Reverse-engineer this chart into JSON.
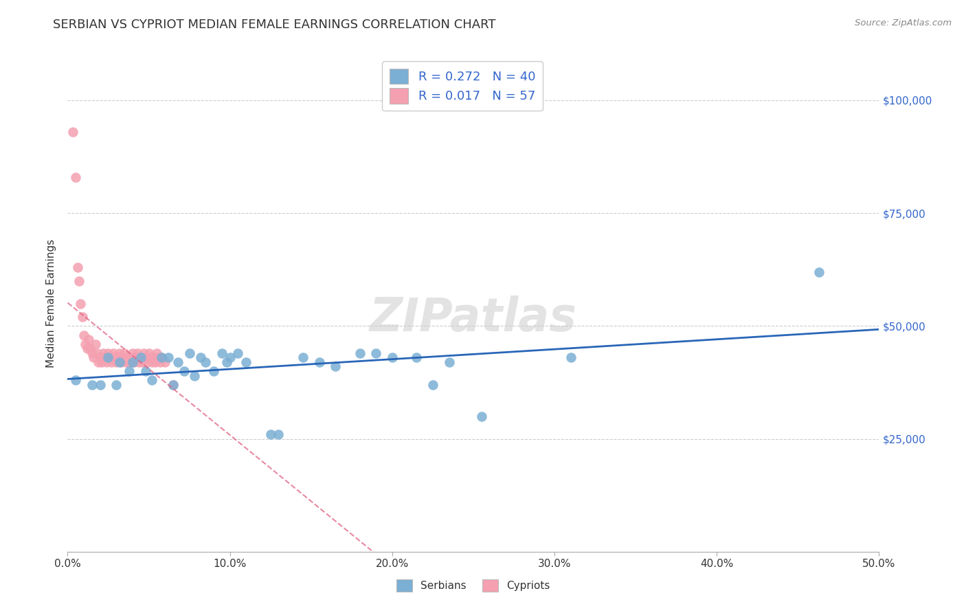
{
  "title": "SERBIAN VS CYPRIOT MEDIAN FEMALE EARNINGS CORRELATION CHART",
  "source": "Source: ZipAtlas.com",
  "ylabel": "Median Female Earnings",
  "xlim": [
    0.0,
    0.5
  ],
  "ylim": [
    0,
    110000
  ],
  "xtick_vals": [
    0.0,
    0.1,
    0.2,
    0.3,
    0.4,
    0.5
  ],
  "xtick_labels": [
    "0.0%",
    "10.0%",
    "20.0%",
    "30.0%",
    "40.0%",
    "50.0%"
  ],
  "ytick_vals": [
    0,
    25000,
    50000,
    75000,
    100000
  ],
  "ytick_right_labels": [
    "",
    "$25,000",
    "$50,000",
    "$75,000",
    "$100,000"
  ],
  "legend_serbian_R": "0.272",
  "legend_serbian_N": "40",
  "legend_cypriot_R": "0.017",
  "legend_cypriot_N": "57",
  "legend_labels": [
    "Serbians",
    "Cypriots"
  ],
  "serbian_color": "#7BAFD4",
  "cypriot_color": "#F4A0B0",
  "trend_serbian_color": "#2966B8",
  "trend_cypriot_color": "#E06080",
  "right_label_color": "#3366CC",
  "background_color": "#FFFFFF",
  "title_fontsize": 13,
  "watermark": "ZIPatlas",
  "serbian_x": [
    0.005,
    0.015,
    0.02,
    0.025,
    0.03,
    0.032,
    0.038,
    0.04,
    0.045,
    0.048,
    0.052,
    0.058,
    0.062,
    0.065,
    0.068,
    0.072,
    0.075,
    0.078,
    0.082,
    0.085,
    0.09,
    0.095,
    0.098,
    0.1,
    0.105,
    0.11,
    0.125,
    0.13,
    0.145,
    0.155,
    0.165,
    0.18,
    0.19,
    0.2,
    0.215,
    0.225,
    0.235,
    0.255,
    0.31,
    0.463
  ],
  "serbian_y": [
    38000,
    37000,
    37000,
    43000,
    37000,
    42000,
    40000,
    42000,
    43000,
    40000,
    38000,
    43000,
    43000,
    37000,
    42000,
    40000,
    44000,
    39000,
    43000,
    42000,
    40000,
    44000,
    42000,
    43000,
    44000,
    42000,
    26000,
    26000,
    43000,
    42000,
    41000,
    44000,
    44000,
    43000,
    43000,
    37000,
    42000,
    30000,
    43000,
    62000
  ],
  "cypriot_x": [
    0.003,
    0.005,
    0.006,
    0.007,
    0.008,
    0.009,
    0.01,
    0.011,
    0.012,
    0.013,
    0.014,
    0.015,
    0.016,
    0.017,
    0.018,
    0.019,
    0.02,
    0.021,
    0.022,
    0.023,
    0.024,
    0.025,
    0.026,
    0.027,
    0.028,
    0.029,
    0.03,
    0.031,
    0.032,
    0.033,
    0.034,
    0.035,
    0.036,
    0.037,
    0.038,
    0.039,
    0.04,
    0.041,
    0.042,
    0.043,
    0.044,
    0.045,
    0.046,
    0.047,
    0.048,
    0.049,
    0.05,
    0.051,
    0.052,
    0.053,
    0.054,
    0.055,
    0.056,
    0.057,
    0.058,
    0.06,
    0.065
  ],
  "cypriot_y": [
    93000,
    83000,
    63000,
    60000,
    55000,
    52000,
    48000,
    46000,
    45000,
    47000,
    45000,
    44000,
    43000,
    46000,
    44000,
    42000,
    43000,
    42000,
    44000,
    43000,
    42000,
    44000,
    43000,
    42000,
    44000,
    43000,
    42000,
    43000,
    44000,
    42000,
    43000,
    44000,
    42000,
    43000,
    42000,
    43000,
    44000,
    42000,
    43000,
    44000,
    42000,
    43000,
    42000,
    44000,
    43000,
    42000,
    44000,
    43000,
    42000,
    43000,
    42000,
    44000,
    43000,
    42000,
    43000,
    42000,
    37000
  ]
}
